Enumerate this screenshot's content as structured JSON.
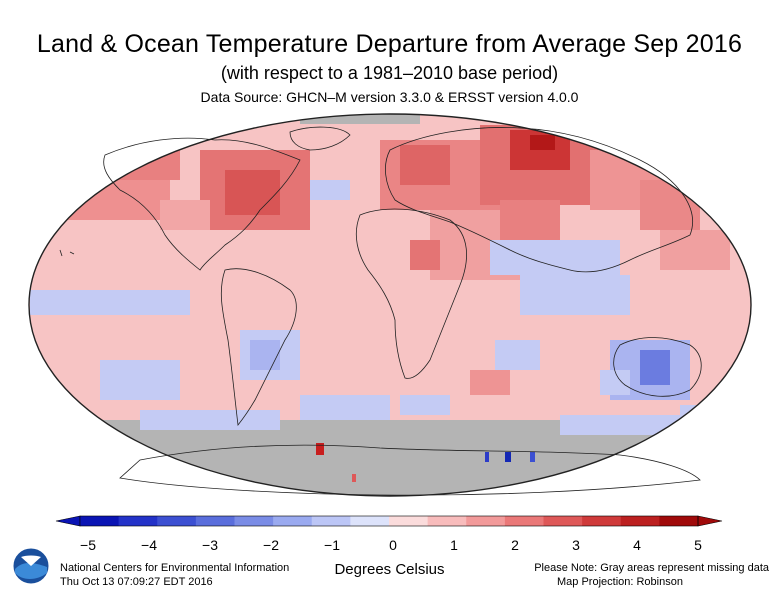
{
  "title": "Land & Ocean Temperature Departure from Average Sep 2016",
  "subtitle": "(with respect to a 1981–2010 base period)",
  "data_source": "Data Source: GHCN–M version 3.3.0 & ERSST version 4.0.0",
  "colorbar": {
    "ticks": [
      "−5",
      "−4",
      "−3",
      "−2",
      "−1",
      "0",
      "1",
      "2",
      "3",
      "4",
      "5"
    ],
    "colors": [
      "#0a14b4",
      "#2332c8",
      "#3c50d2",
      "#5a6edc",
      "#7a8ce6",
      "#9aaaf0",
      "#bcc6f6",
      "#dde3fb",
      "#fbdcdc",
      "#f8bcbc",
      "#f29a9a",
      "#ea7878",
      "#de5858",
      "#cf3a3a",
      "#bc2020",
      "#a00a0a"
    ],
    "units": "Degrees Celsius"
  },
  "footer": {
    "left_line1": "National Centers for Environmental Information",
    "left_line2": "Thu Oct 13 07:09:27 EDT 2016",
    "right_line1": "Please Note: Gray areas represent missing data",
    "right_line2": "Map Projection: Robinson",
    "logo_text": "NOAA"
  },
  "map": {
    "projection": "Robinson",
    "ocean_base_color": "#f7c4c4",
    "missing_color": "#b4b4b4"
  }
}
